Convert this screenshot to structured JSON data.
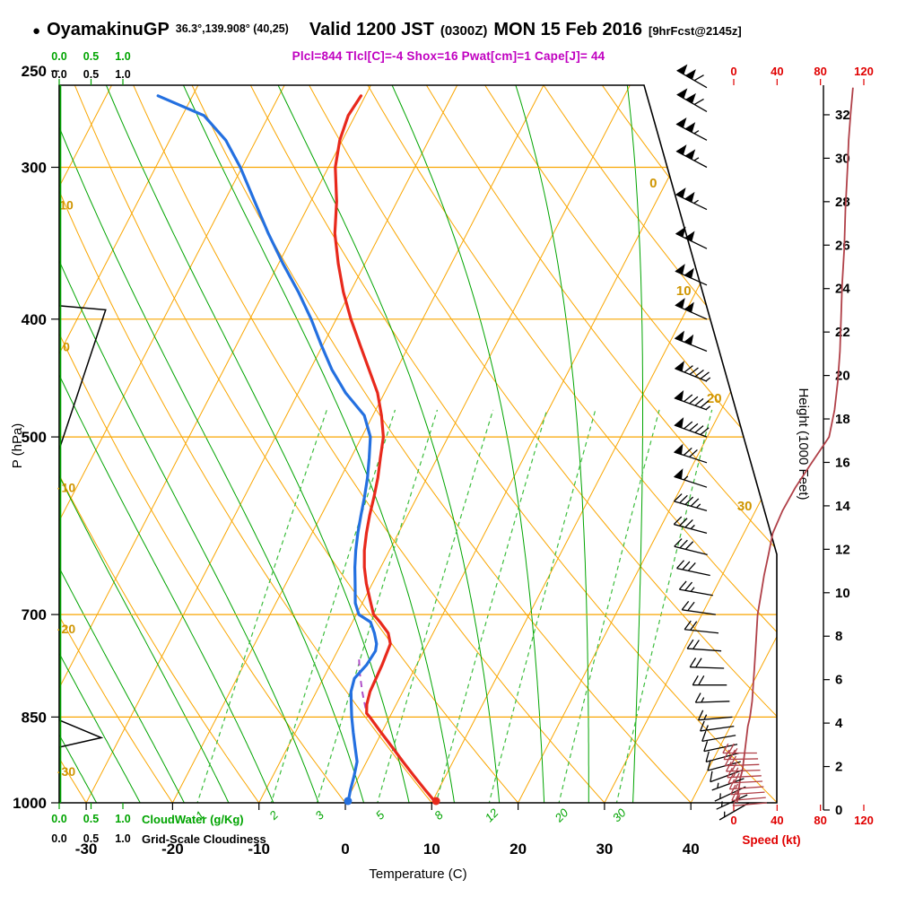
{
  "header": {
    "bullet": "●",
    "station": "OyamakinuGP",
    "coords": "36.3°,139.908° (40,25)",
    "valid_main": "Valid 1200 JST",
    "valid_z": "(0300Z)",
    "valid_date": "MON 15 Feb 2016",
    "fcst": "[9hrFcst@2145z]",
    "stats": "Plcl=844 Tlcl[C]=-4 Shox=16 Pwat[cm]=1 Cape[J]= 44"
  },
  "labels": {
    "p_axis": "P (hPa)",
    "t_axis": "Temperature (C)",
    "h_axis": "Height (1000 Feet)",
    "s_axis": "Speed (kt)",
    "cloudwater": "CloudWater (g/Kg)",
    "cloudiness": "Grid-Scale Cloudiness"
  },
  "axes": {
    "pressure_ticks": [
      250,
      300,
      400,
      500,
      700,
      850,
      1000
    ],
    "temp_ticks": [
      -30,
      -20,
      -10,
      0,
      10,
      20,
      30,
      40
    ],
    "height_ticks": [
      0,
      2,
      4,
      6,
      8,
      10,
      12,
      14,
      16,
      18,
      20,
      22,
      24,
      26,
      28,
      30,
      32
    ],
    "speed_ticks": [
      0,
      40,
      80,
      120
    ],
    "cloud_scale_ticks": [
      "0.0",
      "0.5",
      "1.0"
    ],
    "dry_adiabat_labels": [
      10,
      0,
      -10,
      -20,
      -30
    ],
    "isotherm_diagonal_labels": [
      0,
      10,
      20,
      30
    ]
  },
  "colors": {
    "orange": "#f9a602",
    "olive": "#cf9500",
    "green": "#00a400",
    "green_dash": "#3dbd3d",
    "red": "#e8291c",
    "blue": "#2470e0",
    "crimson": "#b04048",
    "purple": "#b050c8",
    "magenta": "#c000c0",
    "axis_red": "#e00000"
  },
  "chart_data": {
    "type": "line",
    "subtype": "skew-T log-P sounding",
    "title": "OyamakinuGP 36.3,139.908 (40,25) Valid 1200 JST (0300Z) MON 15 Feb 2016 9hrFcst@2145z",
    "pressure_hPa_range": [
      1000,
      257
    ],
    "temperature_axis_range_C": [
      -30,
      40
    ],
    "indices": {
      "Plcl_hPa": 844,
      "Tlcl_C": -4,
      "Shox": 16,
      "Pwat_cm": 1,
      "Cape_J": 44
    },
    "temperature_C": [
      [
        1000,
        10.5
      ],
      [
        975,
        8.4
      ],
      [
        950,
        6.3
      ],
      [
        925,
        4.2
      ],
      [
        900,
        2.1
      ],
      [
        875,
        -0.1
      ],
      [
        850,
        -2.3
      ],
      [
        844,
        -2.9
      ],
      [
        830,
        -3.4
      ],
      [
        810,
        -3.8
      ],
      [
        790,
        -3.9
      ],
      [
        770,
        -4.0
      ],
      [
        750,
        -4.2
      ],
      [
        740,
        -4.3
      ],
      [
        725,
        -5.2
      ],
      [
        710,
        -6.8
      ],
      [
        700,
        -8.0
      ],
      [
        685,
        -9.0
      ],
      [
        660,
        -10.7
      ],
      [
        640,
        -11.9
      ],
      [
        620,
        -12.9
      ],
      [
        600,
        -13.7
      ],
      [
        580,
        -14.4
      ],
      [
        560,
        -15.0
      ],
      [
        540,
        -15.7
      ],
      [
        520,
        -16.6
      ],
      [
        500,
        -17.5
      ],
      [
        480,
        -19.0
      ],
      [
        460,
        -20.8
      ],
      [
        440,
        -23.2
      ],
      [
        420,
        -25.7
      ],
      [
        400,
        -28.3
      ],
      [
        380,
        -30.8
      ],
      [
        360,
        -33.1
      ],
      [
        340,
        -35.3
      ],
      [
        320,
        -37.0
      ],
      [
        300,
        -39.2
      ],
      [
        285,
        -40.3
      ],
      [
        272,
        -40.8
      ],
      [
        262,
        -40.5
      ]
    ],
    "dewpoint_C": [
      [
        1000,
        0.3
      ],
      [
        975,
        -0.2
      ],
      [
        950,
        -0.6
      ],
      [
        925,
        -1.1
      ],
      [
        900,
        -2.2
      ],
      [
        875,
        -3.3
      ],
      [
        850,
        -4.4
      ],
      [
        830,
        -5.2
      ],
      [
        810,
        -6.0
      ],
      [
        790,
        -6.4
      ],
      [
        770,
        -5.8
      ],
      [
        750,
        -5.6
      ],
      [
        740,
        -5.9
      ],
      [
        725,
        -6.8
      ],
      [
        710,
        -7.9
      ],
      [
        700,
        -9.7
      ],
      [
        685,
        -10.8
      ],
      [
        660,
        -12.0
      ],
      [
        640,
        -13.0
      ],
      [
        620,
        -13.9
      ],
      [
        600,
        -14.7
      ],
      [
        580,
        -15.4
      ],
      [
        560,
        -16.1
      ],
      [
        540,
        -16.9
      ],
      [
        520,
        -17.9
      ],
      [
        500,
        -19.0
      ],
      [
        480,
        -21.0
      ],
      [
        460,
        -24.5
      ],
      [
        440,
        -27.5
      ],
      [
        420,
        -30.2
      ],
      [
        400,
        -32.9
      ],
      [
        380,
        -36.0
      ],
      [
        360,
        -39.5
      ],
      [
        340,
        -43.0
      ],
      [
        320,
        -46.5
      ],
      [
        300,
        -50.2
      ],
      [
        285,
        -53.5
      ],
      [
        272,
        -57.5
      ],
      [
        262,
        -64.0
      ]
    ],
    "parcel_path_C": [
      [
        1000,
        10.5
      ],
      [
        950,
        6.3
      ],
      [
        900,
        2.1
      ],
      [
        844,
        -2.9
      ],
      [
        810,
        -4.7
      ],
      [
        780,
        -6.2
      ],
      [
        762,
        -7.0
      ]
    ],
    "wind_barbs_p_dir_kt": [
      [
        1000,
        240,
        3
      ],
      [
        985,
        245,
        4
      ],
      [
        970,
        245,
        5
      ],
      [
        955,
        250,
        6
      ],
      [
        940,
        250,
        8
      ],
      [
        925,
        255,
        9
      ],
      [
        910,
        255,
        10
      ],
      [
        895,
        258,
        11
      ],
      [
        880,
        260,
        12
      ],
      [
        865,
        262,
        13
      ],
      [
        850,
        265,
        15
      ],
      [
        825,
        268,
        17
      ],
      [
        800,
        270,
        18
      ],
      [
        775,
        272,
        19
      ],
      [
        750,
        274,
        20
      ],
      [
        725,
        276,
        21
      ],
      [
        700,
        278,
        22
      ],
      [
        675,
        280,
        25
      ],
      [
        650,
        282,
        28
      ],
      [
        625,
        284,
        32
      ],
      [
        600,
        285,
        36
      ],
      [
        575,
        286,
        45
      ],
      [
        550,
        288,
        57
      ],
      [
        525,
        288,
        72
      ],
      [
        500,
        290,
        88
      ],
      [
        475,
        290,
        93
      ],
      [
        450,
        292,
        96
      ],
      [
        425,
        292,
        98
      ],
      [
        400,
        294,
        99
      ],
      [
        375,
        294,
        100
      ],
      [
        350,
        296,
        102
      ],
      [
        325,
        296,
        103
      ],
      [
        300,
        298,
        105
      ],
      [
        285,
        298,
        106
      ],
      [
        270,
        300,
        108
      ],
      [
        258,
        300,
        110
      ]
    ],
    "wind_red_low_level_p_dir_kt": [
      [
        1000,
        265,
        12
      ],
      [
        990,
        265,
        14
      ],
      [
        980,
        266,
        15
      ],
      [
        970,
        266,
        16
      ],
      [
        960,
        267,
        18
      ],
      [
        950,
        267,
        18
      ],
      [
        940,
        268,
        20
      ],
      [
        930,
        268,
        20
      ],
      [
        920,
        269,
        22
      ],
      [
        910,
        270,
        24
      ]
    ],
    "cloudiness_fraction_p": [
      [
        0,
        257
      ],
      [
        0,
        390
      ],
      [
        0.73,
        393
      ],
      [
        0,
        512
      ],
      [
        0,
        855
      ],
      [
        0.66,
        884
      ],
      [
        0,
        900
      ],
      [
        0,
        1000
      ]
    ],
    "cloud_water_gkg_p": [
      [
        0,
        257
      ],
      [
        0,
        1000
      ]
    ],
    "background": {
      "isotherm_step_C": 10,
      "dry_adiabat_step_C": 10,
      "moist_adiabat_step_C": 5,
      "mixing_ratio_lines_gkg": [
        1,
        2,
        3,
        5,
        8,
        12,
        20,
        30
      ]
    },
    "legend_position": "none",
    "grid": true
  }
}
